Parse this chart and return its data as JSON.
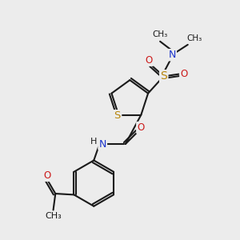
{
  "bg_color": "#ececec",
  "bond_color": "#1a1a1a",
  "bond_lw": 1.5,
  "S_color": "#b8860b",
  "N_color": "#1a33cc",
  "O_color": "#cc1a1a",
  "C_color": "#1a1a1a",
  "font_size": 8.5,
  "xlim": [
    0,
    10
  ],
  "ylim": [
    0,
    11
  ]
}
